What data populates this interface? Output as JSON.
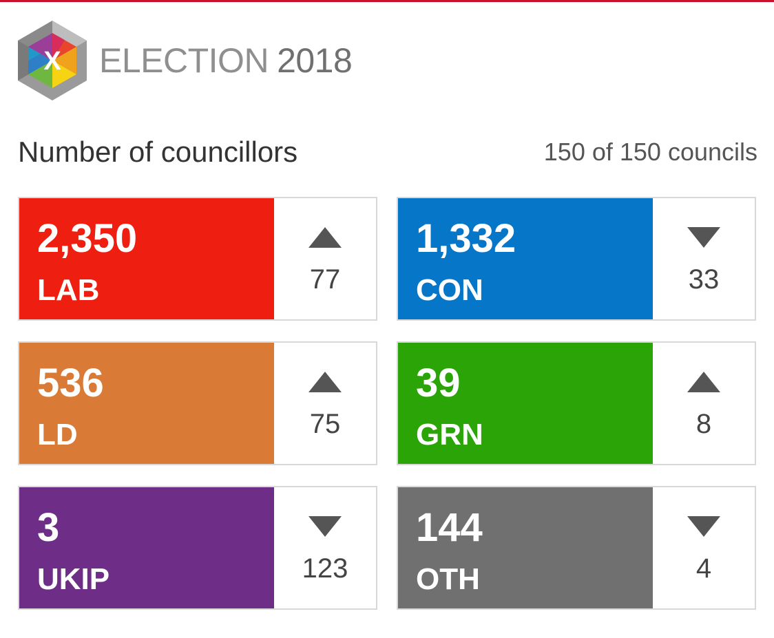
{
  "header": {
    "title_word": "ELECTION",
    "title_year": "2018",
    "logo_letter": "X"
  },
  "subheader": {
    "left": "Number of councillors",
    "right": "150 of 150 councils"
  },
  "colors": {
    "top_rule": "#c8102e",
    "LAB": "#ee1f10",
    "CON": "#0676c9",
    "LD": "#d97b37",
    "GRN": "#2aa407",
    "UKIP": "#6e2d87",
    "OTH": "#707070"
  },
  "parties": [
    {
      "seats": "2,350",
      "party": "LAB",
      "direction": "up",
      "change": "77",
      "color": "#ee1f10"
    },
    {
      "seats": "1,332",
      "party": "CON",
      "direction": "down",
      "change": "33",
      "color": "#0676c9"
    },
    {
      "seats": "536",
      "party": "LD",
      "direction": "up",
      "change": "75",
      "color": "#d97b37"
    },
    {
      "seats": "39",
      "party": "GRN",
      "direction": "up",
      "change": "8",
      "color": "#2aa407"
    },
    {
      "seats": "3",
      "party": "UKIP",
      "direction": "down",
      "change": "123",
      "color": "#6e2d87"
    },
    {
      "seats": "144",
      "party": "OTH",
      "direction": "down",
      "change": "4",
      "color": "#707070"
    }
  ]
}
